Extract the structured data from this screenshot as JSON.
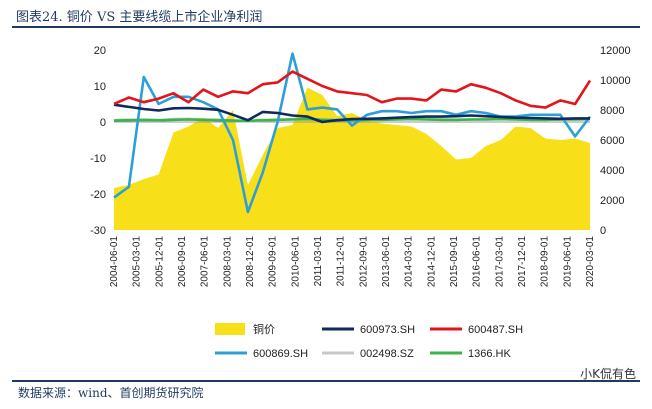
{
  "title": "图表24.   铜价 VS 主要线缆上市企业净利润",
  "source": "数据来源：wind、首创期货研究院",
  "watermark": "小K侃有色",
  "chart_data": {
    "type": "line",
    "x": [
      "2004-06-01",
      "2004-12-01",
      "2005-06-01",
      "2005-12-01",
      "2006-06-01",
      "2006-12-01",
      "2007-06-01",
      "2007-12-01",
      "2008-06-01",
      "2008-12-01",
      "2009-06-01",
      "2009-12-01",
      "2010-06-01",
      "2010-12-01",
      "2011-06-01",
      "2011-12-01",
      "2012-06-01",
      "2012-12-01",
      "2013-06-01",
      "2013-12-01",
      "2014-06-01",
      "2014-12-01",
      "2015-06-01",
      "2015-12-01",
      "2016-06-01",
      "2016-12-01",
      "2017-06-01",
      "2017-12-01",
      "2018-06-01",
      "2018-12-01",
      "2019-06-01",
      "2019-12-01",
      "2020-06-01"
    ],
    "x_tick_labels": [
      "2004-06-01",
      "2005-03-01",
      "2005-12-01",
      "2006-09-01",
      "2007-06-01",
      "2008-03-01",
      "2008-12-01",
      "2009-09-01",
      "2010-06-01",
      "2011-03-01",
      "2011-12-01",
      "2012-09-01",
      "2013-06-01",
      "2014-03-01",
      "2014-12-01",
      "2015-09-01",
      "2016-06-01",
      "2017-03-01",
      "2017-12-01",
      "2018-09-01",
      "2019-06-01",
      "2020-03-01"
    ],
    "y_left": {
      "min": -30,
      "max": 20,
      "ticks": [
        -30,
        -20,
        -10,
        0,
        10,
        20
      ]
    },
    "y_right": {
      "min": 0,
      "max": 12000,
      "ticks": [
        0,
        2000,
        4000,
        6000,
        8000,
        10000,
        12000
      ]
    },
    "series": [
      {
        "name": "铜价",
        "kind": "area",
        "axis": "right",
        "color": "#f7e01a",
        "values": [
          2800,
          3000,
          3400,
          3700,
          6500,
          6900,
          7500,
          6800,
          8000,
          3000,
          5000,
          6800,
          7000,
          9500,
          9000,
          7600,
          7800,
          7300,
          7100,
          7000,
          6900,
          6400,
          5600,
          4700,
          4800,
          5600,
          6000,
          6900,
          6800,
          6100,
          6000,
          6100,
          5800
        ]
      },
      {
        "name": "600973.SH",
        "kind": "line",
        "axis": "left",
        "color": "#0f2a5c",
        "values": [
          4.8,
          4.2,
          3.6,
          3.2,
          3.8,
          3.9,
          3.7,
          3.4,
          2.0,
          0.5,
          2.8,
          2.5,
          1.8,
          1.5,
          0.0,
          0.5,
          0.8,
          0.9,
          1.0,
          1.2,
          1.4,
          1.5,
          1.5,
          1.6,
          1.8,
          1.6,
          1.4,
          1.2,
          1.1,
          1.0,
          0.9,
          1.0,
          1.0
        ]
      },
      {
        "name": "600487.SH",
        "kind": "line",
        "axis": "left",
        "color": "#e4141b",
        "values": [
          5.0,
          6.8,
          5.5,
          6.5,
          8.0,
          5.5,
          9.0,
          7.0,
          8.5,
          8.0,
          10.5,
          11.0,
          14.0,
          12.0,
          10.0,
          8.5,
          8.0,
          7.5,
          5.5,
          6.5,
          6.5,
          6.0,
          9.0,
          8.5,
          10.5,
          9.5,
          8.0,
          6.0,
          4.5,
          4.0,
          6.0,
          5.0,
          11.5
        ]
      },
      {
        "name": "600869.SH",
        "kind": "line",
        "axis": "left",
        "color": "#2e9fd6",
        "values": [
          -21.0,
          -18.0,
          12.5,
          5.0,
          7.0,
          7.0,
          5.5,
          3.5,
          -5.0,
          -25.0,
          -14.0,
          0.0,
          19.0,
          3.5,
          4.0,
          3.5,
          -1.0,
          2.0,
          3.0,
          3.0,
          2.5,
          3.0,
          3.0,
          2.0,
          3.0,
          2.5,
          1.5,
          1.5,
          2.0,
          2.0,
          2.0,
          -4.0,
          1.5
        ]
      },
      {
        "name": "002498.SZ",
        "kind": "line",
        "axis": "left",
        "color": "#c8c8c8",
        "values": [
          0.5,
          0.6,
          0.5,
          0.4,
          0.8,
          0.9,
          0.7,
          0.6,
          0.4,
          0.2,
          0.4,
          0.6,
          0.8,
          0.9,
          0.7,
          0.6,
          0.5,
          0.6,
          0.7,
          0.8,
          0.9,
          0.8,
          0.7,
          0.6,
          0.7,
          0.8,
          0.9,
          0.8,
          0.7,
          0.6,
          0.7,
          0.8,
          0.9
        ]
      },
      {
        "name": "1366.HK",
        "kind": "line",
        "axis": "left",
        "color": "#3ab54a",
        "values": [
          0.4,
          0.5,
          0.6,
          0.5,
          0.6,
          0.7,
          0.6,
          0.5,
          0.4,
          0.3,
          0.5,
          0.6,
          0.7,
          0.8,
          0.6,
          0.5,
          0.5,
          0.6,
          0.6,
          0.7,
          0.8,
          0.7,
          0.6,
          0.6,
          0.7,
          0.7,
          0.8,
          0.7,
          0.6,
          0.6,
          0.7,
          0.7,
          0.8
        ]
      }
    ],
    "legend": "bottom",
    "grid": false
  }
}
